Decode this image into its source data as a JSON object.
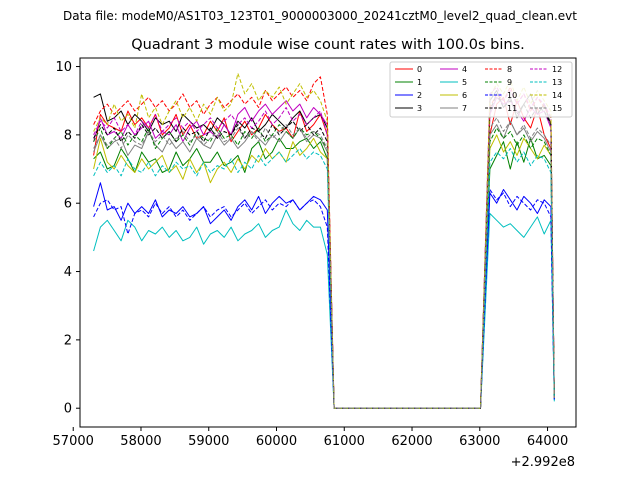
{
  "chart_data": {
    "type": "line",
    "suptitle": "Data file: modeM0/AS1T03_123T01_9000003000_20241cztM0_level2_quad_clean.evt",
    "title": "Quadrant 3 module wise count rates with 100.0s bins.",
    "xlabel": "",
    "ylabel": "",
    "x_offset_label": "+2.992e8",
    "x_offset": 299200000,
    "xlim": [
      57100,
      64420
    ],
    "ylim": [
      -0.55,
      10.25
    ],
    "xticks": [
      57000,
      58000,
      59000,
      60000,
      61000,
      62000,
      63000,
      64000
    ],
    "xtick_labels": [
      "57000",
      "58000",
      "59000",
      "60000",
      "61000",
      "62000",
      "63000",
      "64000"
    ],
    "yticks": [
      0,
      2,
      4,
      6,
      8,
      10
    ],
    "ytick_labels": [
      "0",
      "2",
      "4",
      "6",
      "8",
      "10"
    ],
    "legend_position": "top-right",
    "legend_columns": 4,
    "gap_start": 60850,
    "gap_end": 63010,
    "seg1_start": 57300,
    "seg1_end": 60750,
    "seg2_start": 63150,
    "seg2_end": 64050,
    "series": [
      {
        "name": "0",
        "color": "#ff0000",
        "dash": false,
        "seg1": [
          7.4,
          8.6,
          8.3,
          8.2,
          8.1,
          8.7,
          8.3,
          8.5,
          8.2,
          8.6,
          8.0,
          8.2,
          8.6,
          8.0,
          8.3,
          7.9,
          8.0,
          8.4,
          8.1,
          8.5,
          7.8,
          8.1,
          8.4,
          8.0,
          8.2,
          8.6,
          8.3,
          8.1,
          8.2,
          7.9,
          8.7,
          8.1,
          8.3,
          8.6,
          8.0
        ],
        "seg2": [
          8.0,
          8.9,
          9.1,
          8.3,
          9.0,
          8.5,
          8.2,
          8.8,
          8.0,
          7.6
        ],
        "end": 0.3
      },
      {
        "name": "1",
        "color": "#008000",
        "dash": false,
        "seg1": [
          7.3,
          7.5,
          7.0,
          7.1,
          7.6,
          7.3,
          6.9,
          7.5,
          7.2,
          7.3,
          6.9,
          7.0,
          7.5,
          7.1,
          7.3,
          7.6,
          7.2,
          7.2,
          7.5,
          7.1,
          7.2,
          7.4,
          6.9,
          7.6,
          7.8,
          7.3,
          7.5,
          7.9,
          7.6,
          7.6,
          7.8,
          7.9,
          7.6,
          7.8,
          7.3
        ],
        "seg2": [
          7.0,
          7.4,
          7.8,
          7.0,
          7.8,
          7.2,
          7.9,
          7.3,
          7.4,
          7.1
        ],
        "end": 0.3
      },
      {
        "name": "2",
        "color": "#0000ff",
        "dash": false,
        "seg1": [
          5.9,
          6.6,
          5.8,
          5.9,
          5.5,
          6.0,
          5.7,
          5.9,
          5.7,
          6.1,
          5.6,
          5.8,
          5.7,
          5.9,
          5.6,
          5.7,
          5.9,
          5.4,
          5.6,
          5.8,
          5.5,
          5.9,
          6.1,
          5.8,
          6.2,
          5.7,
          6.0,
          6.2,
          6.0,
          6.1,
          5.8,
          6.0,
          6.2,
          6.1,
          5.8
        ],
        "seg2": [
          6.3,
          6.0,
          6.4,
          6.1,
          5.8,
          6.2,
          6.0,
          5.7,
          6.1,
          5.9
        ],
        "end": 0.25
      },
      {
        "name": "3",
        "color": "#000000",
        "dash": false,
        "seg1": [
          9.1,
          9.2,
          8.4,
          8.5,
          8.7,
          8.3,
          8.6,
          8.4,
          8.1,
          8.5,
          8.3,
          8.4,
          8.1,
          8.6,
          8.4,
          8.2,
          8.3,
          8.1,
          8.5,
          8.3,
          8.0,
          8.4,
          8.2,
          8.5,
          8.1,
          8.3,
          8.6,
          8.4,
          8.2,
          8.5,
          8.7,
          8.3,
          8.5,
          8.6,
          8.2
        ],
        "seg2": [
          9.0,
          9.3,
          8.8,
          9.1,
          8.5,
          8.9,
          9.2,
          8.6,
          8.9,
          8.3
        ],
        "end": 0.3
      },
      {
        "name": "4",
        "color": "#c000c0",
        "dash": false,
        "seg1": [
          7.8,
          8.5,
          8.0,
          8.1,
          7.9,
          8.3,
          8.0,
          8.2,
          8.4,
          7.9,
          8.1,
          8.0,
          8.3,
          7.8,
          8.2,
          8.4,
          8.0,
          8.1,
          7.9,
          8.3,
          8.0,
          8.6,
          8.8,
          8.4,
          8.7,
          8.9,
          8.6,
          8.8,
          9.0,
          8.7,
          8.9,
          8.5,
          8.8,
          8.6,
          8.3
        ],
        "seg2": [
          8.6,
          9.1,
          8.9,
          9.0,
          8.7,
          8.4,
          8.8,
          8.6,
          8.7,
          8.2
        ],
        "end": 0.3
      },
      {
        "name": "5",
        "color": "#00bfbf",
        "dash": false,
        "seg1": [
          4.6,
          5.3,
          5.5,
          5.2,
          4.9,
          5.5,
          5.3,
          4.9,
          5.2,
          5.1,
          5.3,
          5.0,
          5.2,
          4.9,
          5.0,
          5.3,
          4.8,
          5.1,
          5.2,
          5.0,
          5.3,
          4.9,
          5.1,
          5.2,
          5.4,
          5.0,
          5.2,
          5.3,
          5.8,
          5.4,
          5.2,
          5.5,
          5.3,
          5.3,
          4.5
        ],
        "seg2": [
          5.7,
          5.5,
          5.3,
          5.4,
          5.2,
          5.0,
          5.3,
          5.6,
          5.1,
          5.5
        ],
        "end": 0.2
      },
      {
        "name": "6",
        "color": "#bfbf00",
        "dash": false,
        "seg1": [
          7.0,
          7.9,
          7.2,
          7.0,
          7.4,
          7.1,
          6.9,
          7.3,
          7.0,
          7.2,
          7.4,
          6.9,
          7.1,
          6.7,
          7.3,
          6.9,
          7.2,
          6.6,
          7.0,
          7.2,
          6.9,
          7.3,
          7.0,
          7.4,
          7.2,
          7.6,
          7.3,
          7.5,
          7.2,
          7.8,
          7.4,
          7.6,
          7.9,
          7.5,
          7.3
        ],
        "seg2": [
          7.6,
          8.0,
          7.5,
          7.8,
          7.4,
          7.9,
          7.6,
          7.3,
          7.7,
          7.4
        ],
        "end": 0.3
      },
      {
        "name": "7",
        "color": "#808080",
        "dash": false,
        "seg1": [
          7.5,
          8.0,
          7.6,
          7.8,
          7.9,
          7.4,
          7.7,
          7.6,
          8.1,
          7.7,
          7.5,
          7.9,
          7.6,
          7.8,
          7.5,
          7.9,
          7.7,
          7.6,
          8.0,
          7.7,
          7.9,
          7.6,
          7.8,
          8.1,
          7.9,
          7.7,
          8.0,
          7.8,
          8.1,
          7.9,
          8.2,
          7.8,
          8.0,
          7.9,
          7.5
        ],
        "seg2": [
          8.0,
          8.3,
          7.9,
          8.4,
          8.0,
          8.2,
          7.8,
          8.1,
          7.9,
          7.5
        ],
        "end": 0.3
      },
      {
        "name": "8",
        "color": "#ff0000",
        "dash": true,
        "seg1": [
          8.3,
          8.7,
          8.9,
          8.6,
          8.8,
          9.0,
          8.7,
          8.9,
          9.1,
          8.8,
          9.0,
          8.7,
          8.9,
          9.2,
          8.8,
          9.0,
          8.6,
          8.9,
          9.1,
          8.8,
          9.0,
          9.2,
          8.9,
          9.1,
          8.8,
          9.3,
          9.0,
          9.2,
          9.4,
          9.1,
          9.3,
          9.0,
          9.5,
          9.7,
          8.6
        ],
        "seg2": [
          8.8,
          9.2,
          9.0,
          9.4,
          8.9,
          9.2,
          8.7,
          9.1,
          8.8,
          8.5
        ],
        "end": 0.3
      },
      {
        "name": "9",
        "color": "#008000",
        "dash": true,
        "seg1": [
          7.8,
          8.2,
          7.6,
          7.9,
          8.1,
          7.7,
          8.0,
          7.8,
          8.2,
          7.6,
          7.9,
          8.1,
          7.8,
          8.0,
          7.7,
          8.1,
          7.9,
          7.8,
          8.2,
          7.9,
          8.0,
          7.7,
          8.1,
          7.9,
          8.2,
          7.8,
          8.0,
          8.3,
          8.1,
          7.9,
          8.2,
          8.0,
          8.1,
          7.9,
          7.6
        ],
        "seg2": [
          7.8,
          8.2,
          7.9,
          8.1,
          7.7,
          8.0,
          7.6,
          7.9,
          7.8,
          7.4
        ],
        "end": 0.3
      },
      {
        "name": "10",
        "color": "#0000ff",
        "dash": true,
        "seg1": [
          5.6,
          6.0,
          6.1,
          5.8,
          5.9,
          5.1,
          5.7,
          5.8,
          5.6,
          6.0,
          5.7,
          5.9,
          5.6,
          5.8,
          5.5,
          5.7,
          5.9,
          5.6,
          5.8,
          5.9,
          5.6,
          5.8,
          6.0,
          5.7,
          5.9,
          6.1,
          5.8,
          6.0,
          5.9,
          6.1,
          5.8,
          6.0,
          6.1,
          5.9,
          5.3
        ],
        "seg2": [
          6.4,
          6.1,
          6.3,
          5.9,
          6.2,
          6.0,
          5.8,
          6.1,
          6.0,
          5.6
        ],
        "end": 0.25
      },
      {
        "name": "11",
        "color": "#000000",
        "dash": true,
        "seg1": [
          7.9,
          8.3,
          8.0,
          8.2,
          7.8,
          8.1,
          7.9,
          8.3,
          8.0,
          8.2,
          7.9,
          8.1,
          7.8,
          8.2,
          8.0,
          8.1,
          7.8,
          8.2,
          7.9,
          8.1,
          8.0,
          8.3,
          7.9,
          8.2,
          8.1,
          7.9,
          8.3,
          8.0,
          8.2,
          8.4,
          8.1,
          8.3,
          8.0,
          8.2,
          7.8
        ],
        "seg2": [
          8.7,
          9.2,
          8.8,
          9.0,
          8.6,
          8.9,
          8.5,
          8.8,
          8.7,
          8.3
        ],
        "end": 0.3
      },
      {
        "name": "12",
        "color": "#c000c0",
        "dash": true,
        "seg1": [
          8.0,
          8.4,
          8.2,
          8.5,
          8.1,
          8.3,
          8.0,
          8.4,
          8.2,
          8.6,
          8.1,
          8.3,
          8.5,
          8.2,
          8.4,
          8.1,
          8.3,
          8.5,
          8.2,
          8.4,
          8.6,
          8.3,
          8.5,
          8.2,
          8.4,
          8.7,
          8.3,
          8.5,
          8.8,
          8.4,
          8.6,
          8.3,
          8.5,
          8.7,
          8.0
        ],
        "seg2": [
          9.2,
          9.4,
          9.0,
          9.3,
          8.9,
          9.2,
          8.8,
          9.1,
          8.9,
          8.5
        ],
        "end": 0.3
      },
      {
        "name": "13",
        "color": "#00bfbf",
        "dash": true,
        "seg1": [
          6.8,
          7.2,
          6.9,
          7.1,
          6.8,
          7.3,
          7.0,
          6.9,
          7.2,
          6.8,
          7.1,
          6.9,
          7.2,
          7.0,
          7.1,
          6.8,
          7.2,
          6.9,
          7.1,
          7.0,
          7.3,
          6.9,
          7.2,
          7.0,
          7.4,
          7.1,
          7.3,
          7.5,
          7.2,
          7.4,
          7.6,
          7.3,
          7.5,
          7.4,
          7.0
        ],
        "seg2": [
          7.2,
          7.5,
          7.3,
          7.6,
          7.2,
          7.5,
          7.1,
          7.4,
          7.3,
          6.9
        ],
        "end": 0.3
      },
      {
        "name": "14",
        "color": "#bfbf00",
        "dash": true,
        "seg1": [
          8.1,
          8.5,
          8.3,
          8.9,
          8.4,
          8.6,
          8.2,
          9.2,
          8.5,
          8.8,
          8.3,
          8.7,
          9.0,
          8.5,
          8.8,
          8.4,
          8.9,
          8.6,
          9.1,
          8.7,
          8.9,
          9.8,
          9.2,
          9.5,
          9.0,
          9.3,
          9.1,
          9.4,
          8.9,
          9.2,
          9.5,
          9.1,
          9.3,
          9.0,
          8.4
        ],
        "seg2": [
          9.1,
          9.5,
          9.2,
          9.6,
          9.0,
          9.4,
          8.9,
          9.3,
          9.0,
          8.7
        ],
        "end": 0.3
      },
      {
        "name": "15",
        "color": "#808080",
        "dash": true,
        "seg1": [
          7.6,
          8.0,
          7.7,
          7.9,
          7.6,
          8.0,
          7.8,
          7.7,
          8.1,
          7.8,
          8.0,
          7.7,
          7.9,
          8.1,
          7.8,
          8.0,
          7.7,
          7.9,
          8.1,
          7.8,
          7.9,
          8.2,
          7.9,
          8.1,
          7.8,
          8.2,
          7.9,
          8.1,
          8.3,
          8.0,
          8.2,
          7.9,
          8.1,
          8.0,
          7.6
        ],
        "seg2": [
          8.2,
          8.5,
          8.1,
          8.4,
          8.0,
          8.3,
          7.9,
          8.2,
          8.0,
          7.7
        ],
        "end": 0.3
      }
    ]
  }
}
